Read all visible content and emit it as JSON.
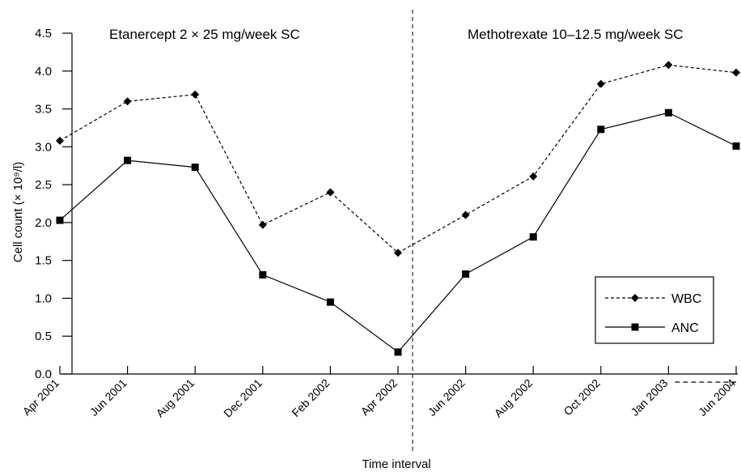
{
  "chart_data": {
    "type": "line",
    "title": "",
    "xlabel": "Time interval",
    "ylabel": "Cell count (× 10⁹/l)",
    "ylim": [
      0,
      4.5
    ],
    "yticks": [
      "0.0",
      "0.5",
      "1.0",
      "1.5",
      "2.0",
      "2.5",
      "3.0",
      "3.5",
      "4.0",
      "4.5"
    ],
    "categories": [
      "Apr 2001",
      "Jun 2001",
      "Aug 2001",
      "Dec 2001",
      "Feb 2002",
      "Apr 2002",
      "Jun 2002",
      "Aug 2002",
      "Oct 2002",
      "Jan 2003",
      "Jun 2004"
    ],
    "series": [
      {
        "name": "WBC",
        "style": "dashed",
        "marker": "diamond",
        "values": [
          3.08,
          3.6,
          3.69,
          1.97,
          2.4,
          1.6,
          2.1,
          2.61,
          3.83,
          4.08,
          3.98
        ]
      },
      {
        "name": "ANC",
        "style": "solid",
        "marker": "square",
        "values": [
          2.03,
          2.82,
          2.73,
          1.31,
          0.95,
          0.29,
          1.32,
          1.81,
          3.23,
          3.45,
          3.01
        ]
      }
    ],
    "annotations": [
      {
        "text": "Etanercept 2 × 25 mg/week SC"
      },
      {
        "text": "Methotrexate 10–12.5 mg/week SC"
      }
    ],
    "legend_position": "bottom-right",
    "grid": false
  }
}
